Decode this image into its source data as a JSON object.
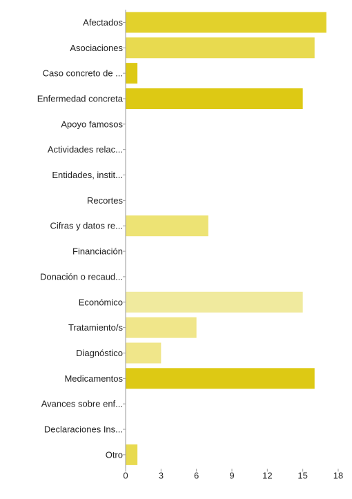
{
  "chart_data": {
    "type": "bar",
    "orientation": "horizontal",
    "categories": [
      "Afectados",
      "Asociaciones",
      "Caso concreto de ...",
      "Enfermedad concreta",
      "Apoyo famosos",
      "Actividades relac...",
      "Entidades, instit...",
      "Recortes",
      "Cifras y datos re...",
      "Financiación",
      "Donación o recaud...",
      "Económico",
      "Tratamiento/s",
      "Diagnóstico",
      "Medicamentos",
      "Avances sobre enf...",
      "Declaraciones Ins...",
      "Otro"
    ],
    "values": [
      17,
      16,
      1,
      15,
      0,
      0,
      0,
      0,
      7,
      0,
      0,
      15,
      6,
      3,
      16,
      0,
      0,
      1
    ],
    "bar_colors": [
      "#e2d12c",
      "#e8da4f",
      "#ddc914",
      "#ddc914",
      "#e2d12c",
      "#e8da4f",
      "#ddc914",
      "#ddc914",
      "#ede374",
      "#e2d12c",
      "#e8da4f",
      "#f0ea9e",
      "#f0e68a",
      "#f0e68a",
      "#ddc914",
      "#e8da4f",
      "#ddc914",
      "#e8da4f"
    ],
    "xlim": [
      0,
      18
    ],
    "xticks": [
      0,
      3,
      6,
      9,
      12,
      15,
      18
    ],
    "title": "",
    "xlabel": "",
    "ylabel": "",
    "grid": false,
    "legend": "none"
  }
}
